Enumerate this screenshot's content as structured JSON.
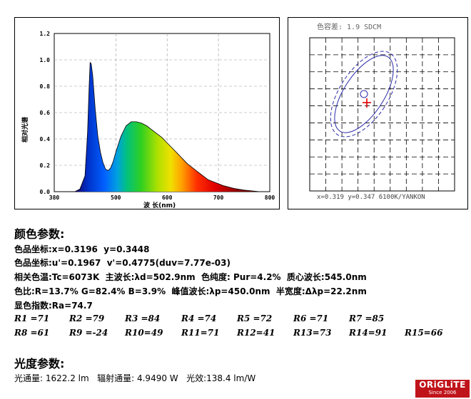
{
  "spectrum": {
    "ylabel": "相对光谱",
    "xlabel": "波 长(nm)",
    "y_ticks": [
      "0.0",
      "0.2",
      "0.4",
      "0.6",
      "0.8",
      "1.0",
      "1.2"
    ],
    "x_ticks": [
      "380",
      "500",
      "600",
      "700",
      "800"
    ]
  },
  "chart_data": [
    {
      "type": "area",
      "xlabel": "波 长(nm)",
      "ylabel": "相对光谱",
      "xlim": [
        380,
        800
      ],
      "ylim": [
        0,
        1.2
      ],
      "grid": true,
      "fill": "rainbow (wavelength colors)",
      "x": [
        420,
        430,
        440,
        445,
        448,
        450,
        452,
        455,
        460,
        465,
        470,
        475,
        480,
        485,
        490,
        495,
        500,
        510,
        520,
        530,
        540,
        550,
        560,
        570,
        580,
        590,
        600,
        610,
        620,
        630,
        640,
        650,
        660,
        670,
        680,
        690,
        700,
        710,
        720,
        730,
        740,
        750,
        760,
        770,
        780
      ],
      "y": [
        0.0,
        0.02,
        0.12,
        0.45,
        0.8,
        0.98,
        0.97,
        0.88,
        0.62,
        0.42,
        0.3,
        0.22,
        0.17,
        0.16,
        0.18,
        0.23,
        0.3,
        0.42,
        0.5,
        0.53,
        0.53,
        0.52,
        0.5,
        0.47,
        0.44,
        0.41,
        0.37,
        0.33,
        0.29,
        0.25,
        0.21,
        0.18,
        0.15,
        0.12,
        0.09,
        0.075,
        0.06,
        0.045,
        0.035,
        0.025,
        0.018,
        0.012,
        0.008,
        0.004,
        0.0
      ]
    },
    {
      "type": "scatter",
      "title": "色容差:   1.9 SDCM",
      "points": [
        {
          "name": "measured",
          "x": 0.319,
          "y": 0.347
        }
      ],
      "grid": true
    }
  ],
  "cie": {
    "title": "色容差:   1.9 SDCM",
    "footer": "x=0.319 y=0.347 6100K/YANKON",
    "ellipse_color": "#2a2aa8",
    "cross_color": "#e00000"
  },
  "color_section": {
    "title": "颜色参数:",
    "line1": "色品坐标:x=0.3196  y=0.3448",
    "line2": "色品坐标:u'=0.1967  v'=0.4775(duv=7.77e-03)",
    "line3": "相关色温:Tc=6073K  主波长:λd=502.9nm  色纯度: Pur=4.2%  质心波长:545.0nm",
    "line4": "色比:R=13.7% G=82.4% B=3.9%  峰值波长:λp=450.0nm  半宽度:Δλp=22.2nm",
    "line5": "显色指数:Ra=74.7",
    "ri": [
      "R1 =71",
      "R2 =79",
      "R3 =84",
      "R4 =74",
      "R5 =72",
      "R6 =71",
      "R7 =85",
      "R8 =61",
      "R9 =-24",
      "R10=49",
      "R11=71",
      "R12=41",
      "R13=73",
      "R14=91",
      "R15=66"
    ]
  },
  "luminous_section": {
    "title": "光度参数:",
    "line1": "光通量: 1622.2 lm   辐射通量: 4.9490 W   光效:138.4 lm/W"
  },
  "logo": {
    "brand": "ORiGLiTE",
    "since": "Since 2006"
  }
}
